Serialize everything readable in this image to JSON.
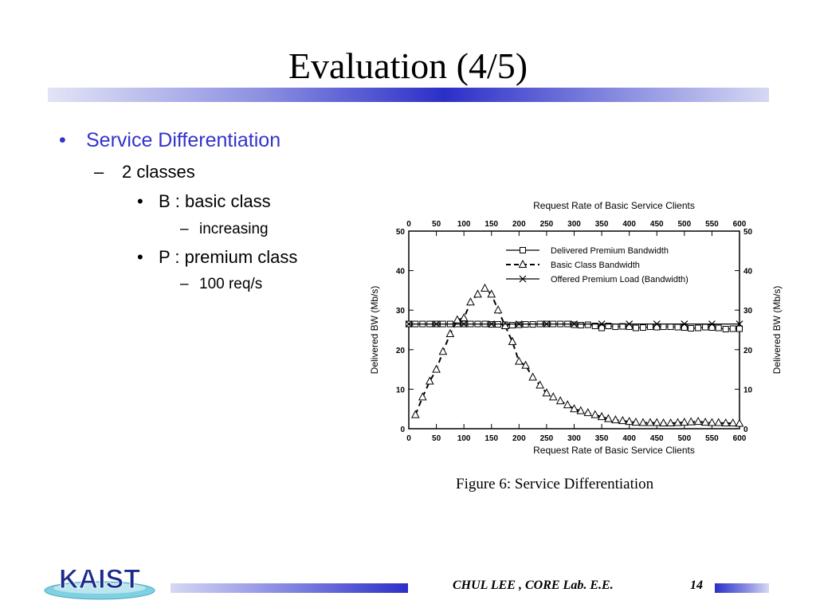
{
  "slide": {
    "title": "Evaluation (4/5)",
    "bullets": {
      "l1": "Service Differentiation",
      "l2": "2 classes",
      "l3a": "B : basic class",
      "l4a": "increasing",
      "l3b": "P : premium class",
      "l4b": "100 req/s"
    },
    "bullet_glyph": "•",
    "dash_glyph": "–"
  },
  "figure": {
    "caption": "Figure 6:  Service Differentiation"
  },
  "footer": {
    "author": "CHUL LEE  ,  CORE Lab. E.E.",
    "page": "14",
    "logo_text": "KAIST"
  },
  "chart_data": {
    "type": "line",
    "title": "Request Rate of Basic Service Clients",
    "xlabel": "Request Rate of Basic Service Clients",
    "ylabel": "Delivered BW (Mb/s)",
    "ylabel_right": "Delivered BW (Mb/s)",
    "xlim": [
      0,
      600
    ],
    "ylim": [
      0,
      50
    ],
    "xticks": [
      0,
      50,
      100,
      150,
      200,
      250,
      300,
      350,
      400,
      450,
      500,
      550,
      600
    ],
    "yticks": [
      0,
      10,
      20,
      30,
      40,
      50
    ],
    "grid": false,
    "legend_position": "top-right",
    "series": [
      {
        "name": "Delivered Premium Bandwidth",
        "marker": "square",
        "x": [
          0,
          12,
          25,
          38,
          50,
          62,
          75,
          88,
          100,
          112,
          125,
          138,
          150,
          162,
          175,
          188,
          200,
          212,
          225,
          238,
          250,
          262,
          275,
          288,
          300,
          312,
          325,
          338,
          350,
          362,
          375,
          388,
          400,
          412,
          425,
          438,
          450,
          462,
          475,
          488,
          500,
          512,
          525,
          538,
          550,
          562,
          575,
          588,
          600
        ],
        "y": [
          26.5,
          26.5,
          26.5,
          26.5,
          26.5,
          26.5,
          26.5,
          26.5,
          26.5,
          26.5,
          26.5,
          26.5,
          26.4,
          26.4,
          26.3,
          26.2,
          26.3,
          26.4,
          26.4,
          26.5,
          26.5,
          26.5,
          26.5,
          26.5,
          26.3,
          26.2,
          26.3,
          26.0,
          25.5,
          26.0,
          25.8,
          25.9,
          25.8,
          25.5,
          25.6,
          25.8,
          25.7,
          25.8,
          25.8,
          25.7,
          25.6,
          25.4,
          25.5,
          25.7,
          25.6,
          25.5,
          25.2,
          25.3,
          25.3
        ]
      },
      {
        "name": "Basic Class Bandwidth",
        "marker": "triangle",
        "x": [
          12,
          25,
          38,
          50,
          62,
          75,
          88,
          100,
          112,
          125,
          138,
          150,
          162,
          175,
          188,
          200,
          212,
          225,
          238,
          250,
          262,
          275,
          288,
          300,
          312,
          325,
          338,
          350,
          362,
          375,
          388,
          400,
          412,
          425,
          438,
          450,
          462,
          475,
          488,
          500,
          512,
          525,
          538,
          550,
          562,
          575,
          588,
          600
        ],
        "y": [
          3.5,
          8,
          12,
          15,
          19.5,
          24,
          27.5,
          28,
          32,
          34,
          35.5,
          34,
          30,
          26,
          22,
          17,
          16,
          13,
          11,
          9,
          8,
          7,
          6,
          5,
          4.5,
          4,
          3.5,
          3,
          2.5,
          2.2,
          2,
          1.8,
          1.6,
          1.5,
          1.5,
          1.5,
          1.4,
          1.4,
          1.5,
          1.6,
          1.7,
          1.8,
          1.6,
          1.5,
          1.5,
          1.4,
          1.4,
          1.3
        ]
      },
      {
        "name": "Offered Premium Load (Bandwidth)",
        "marker": "x",
        "x": [
          0,
          50,
          100,
          150,
          200,
          250,
          300,
          350,
          400,
          450,
          500,
          550,
          600
        ],
        "y": [
          26.5,
          26.5,
          26.5,
          26.5,
          26.5,
          26.5,
          26.5,
          26.5,
          26.5,
          26.5,
          26.5,
          26.5,
          26.5
        ]
      }
    ]
  },
  "colors": {
    "accent": "#3333cc",
    "bar_dark": "#2c2fc7",
    "ink": "#000000"
  }
}
